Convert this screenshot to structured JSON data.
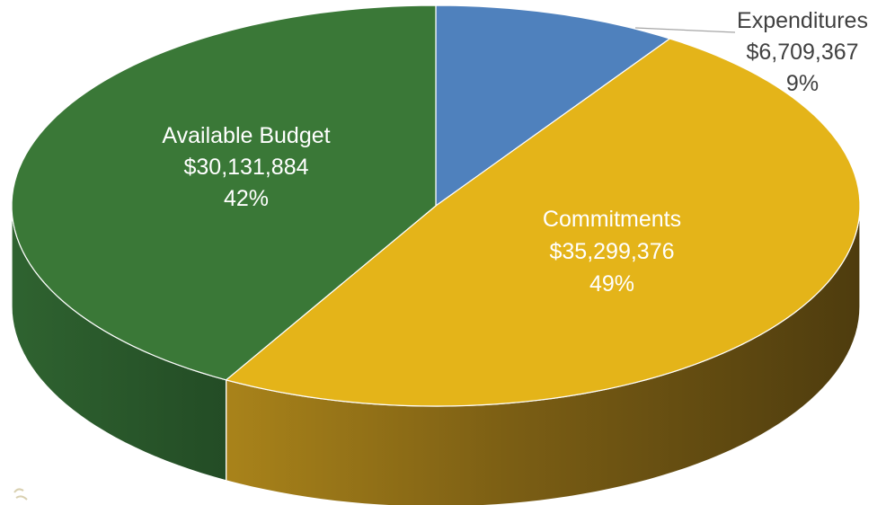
{
  "chart_data": {
    "type": "pie",
    "three_d": true,
    "legend": "none",
    "slices": [
      {
        "name": "Expenditures",
        "value": 6709367,
        "value_label": "$6,709,367",
        "percent_label": "9%",
        "color": "#4f81bd"
      },
      {
        "name": "Commitments",
        "value": 35299376,
        "value_label": "$35,299,376",
        "percent_label": "49%",
        "color": "#e4b419"
      },
      {
        "name": "Available Budget",
        "value": 30131884,
        "value_label": "$30,131,884",
        "percent_label": "42%",
        "color": "#3a7837"
      }
    ]
  },
  "colors": {
    "expenditures_label": "#404040",
    "inside_label": "#ffffff",
    "outline": "#ffffff"
  }
}
